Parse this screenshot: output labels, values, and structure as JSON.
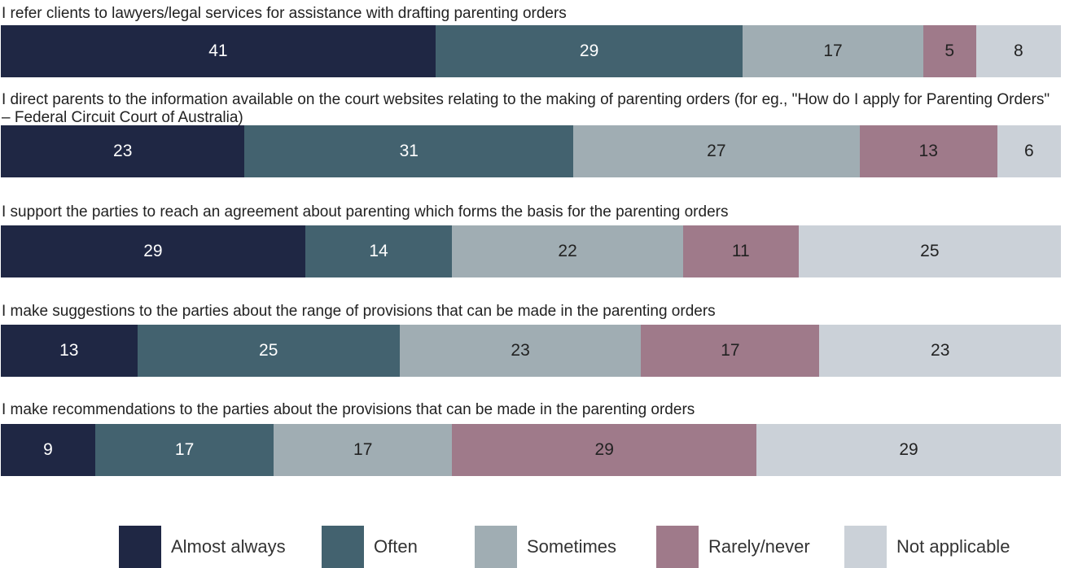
{
  "chart_data": {
    "type": "bar",
    "orientation": "horizontal",
    "stacked": true,
    "categories": [
      "I refer clients to lawyers/legal services for assistance with drafting parenting orders",
      "I direct parents to the information available on the court websites relating to the making of parenting orders (for eg., \"How do I apply for Parenting Orders\" – Federal Circuit Court of Australia)",
      "I support the parties to reach an agreement about parenting which forms the basis for the parenting orders",
      "I make suggestions to the parties about the range of provisions that can be made in the parenting orders",
      "I make recommendations to the parties about the provisions that can be made in the parenting orders"
    ],
    "series": [
      {
        "name": "Almost always",
        "color": "#1f2744",
        "text_color": "#ffffff",
        "values": [
          41,
          23,
          29,
          13,
          9
        ]
      },
      {
        "name": "Often",
        "color": "#43626f",
        "text_color": "#ffffff",
        "values": [
          29,
          31,
          14,
          25,
          17
        ]
      },
      {
        "name": "Sometimes",
        "color": "#a0adb3",
        "text_color": "#222222",
        "values": [
          17,
          27,
          22,
          23,
          17
        ]
      },
      {
        "name": "Rarely/never",
        "color": "#9f7a8a",
        "text_color": "#222222",
        "values": [
          5,
          13,
          11,
          17,
          29
        ]
      },
      {
        "name": "Not applicable",
        "color": "#cbd1d8",
        "text_color": "#222222",
        "values": [
          8,
          6,
          25,
          23,
          29
        ]
      }
    ],
    "title": "",
    "xlabel": "",
    "ylabel": "",
    "legend": "bottom",
    "grid": false
  }
}
